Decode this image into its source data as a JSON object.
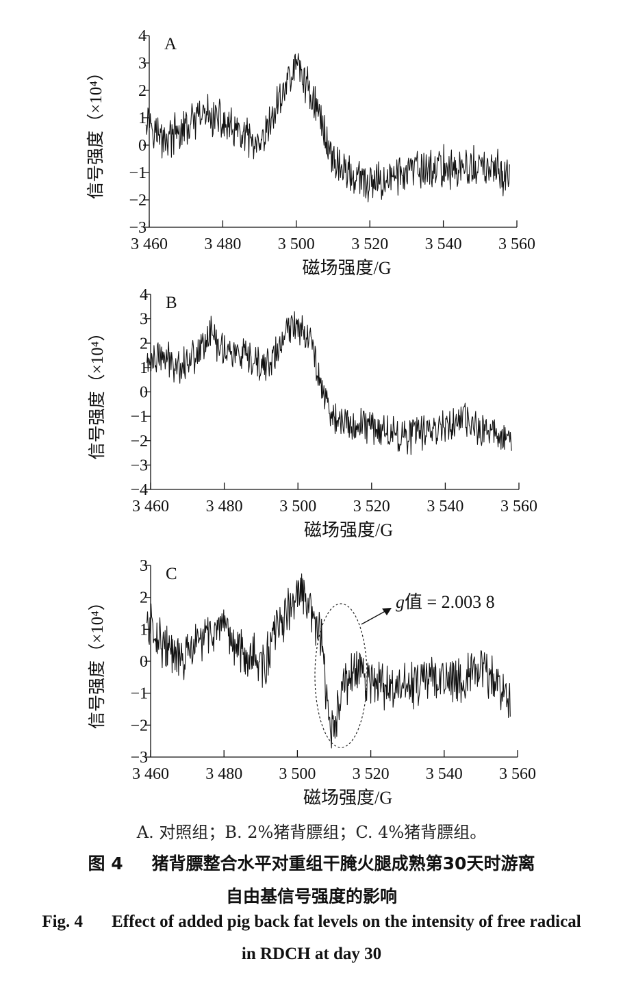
{
  "chart_data": [
    {
      "type": "line",
      "panel_label": "A",
      "xlabel": "磁场强度/G",
      "ylabel": "信号强度（×10⁴）",
      "xlim": [
        3460,
        3560
      ],
      "ylim": [
        -3,
        4
      ],
      "xticks": [
        3460,
        3480,
        3500,
        3520,
        3540,
        3560
      ],
      "xtick_labels": [
        "3 460",
        "3 480",
        "3 500",
        "3 520",
        "3 540",
        "3 560"
      ],
      "yticks": [
        -3,
        -2,
        -1,
        0,
        1,
        2,
        3,
        4
      ],
      "ytick_labels": [
        "−3",
        "−2",
        "−1",
        "0",
        "1",
        "2",
        "3",
        "4"
      ],
      "x": [
        3459,
        3461,
        3463,
        3466,
        3469,
        3472,
        3475,
        3478,
        3481,
        3484,
        3487,
        3490,
        3493,
        3495,
        3497,
        3499,
        3500,
        3501,
        3502,
        3504,
        3506,
        3508,
        3510,
        3512,
        3514,
        3517,
        3520,
        3525,
        3530,
        3535,
        3540,
        3545,
        3550,
        3555,
        3558
      ],
      "values": [
        1.2,
        0.8,
        0.2,
        0.3,
        0.5,
        0.8,
        1.1,
        1.0,
        0.7,
        0.4,
        0.2,
        -0.3,
        0.8,
        1.5,
        2.2,
        2.6,
        3.0,
        2.8,
        2.4,
        1.9,
        1.2,
        0.3,
        -0.5,
        -0.8,
        -1.0,
        -1.3,
        -1.5,
        -1.2,
        -1.0,
        -0.9,
        -0.8,
        -0.9,
        -0.8,
        -1.0,
        -1.1
      ]
    },
    {
      "type": "line",
      "panel_label": "B",
      "xlabel": "磁场强度/G",
      "ylabel": "信号强度（×10⁴）",
      "xlim": [
        3460,
        3560
      ],
      "ylim": [
        -4,
        4
      ],
      "xticks": [
        3460,
        3480,
        3500,
        3520,
        3540,
        3560
      ],
      "xtick_labels": [
        "3 460",
        "3 480",
        "3 500",
        "3 520",
        "3 540",
        "3 560"
      ],
      "yticks": [
        -4,
        -3,
        -2,
        -1,
        0,
        1,
        2,
        3,
        4
      ],
      "ytick_labels": [
        "−4",
        "−3",
        "−2",
        "−1",
        "0",
        "1",
        "2",
        "3",
        "4"
      ],
      "x": [
        3459,
        3462,
        3465,
        3468,
        3471,
        3474,
        3476,
        3478,
        3481,
        3484,
        3487,
        3490,
        3493,
        3495,
        3497,
        3499,
        3501,
        3503,
        3505,
        3507,
        3509,
        3511,
        3514,
        3518,
        3522,
        3526,
        3530,
        3535,
        3540,
        3545,
        3550,
        3555,
        3558
      ],
      "values": [
        1.2,
        1.4,
        1.3,
        1.1,
        1.4,
        1.9,
        2.5,
        2.0,
        1.7,
        1.5,
        1.2,
        1.0,
        1.3,
        1.8,
        2.4,
        2.8,
        2.7,
        2.3,
        1.2,
        0.0,
        -0.9,
        -1.2,
        -1.4,
        -1.3,
        -1.5,
        -1.7,
        -1.8,
        -1.6,
        -1.3,
        -1.2,
        -1.6,
        -1.7,
        -1.9
      ]
    },
    {
      "type": "line",
      "panel_label": "C",
      "xlabel": "磁场强度/G",
      "ylabel": "信号强度（×10⁴）",
      "xlim": [
        3460,
        3560
      ],
      "ylim": [
        -3,
        3
      ],
      "xticks": [
        3460,
        3480,
        3500,
        3520,
        3540,
        3560
      ],
      "xtick_labels": [
        "3 460",
        "3 480",
        "3 500",
        "3 520",
        "3 540",
        "3 560"
      ],
      "yticks": [
        -3,
        -2,
        -1,
        0,
        1,
        2,
        3
      ],
      "ytick_labels": [
        "−3",
        "−2",
        "−1",
        "0",
        "1",
        "2",
        "3"
      ],
      "x": [
        3459,
        3462,
        3465,
        3468,
        3471,
        3474,
        3477,
        3480,
        3483,
        3486,
        3489,
        3491,
        3493,
        3495,
        3497,
        3499,
        3501,
        3503,
        3505,
        3506,
        3507,
        3508,
        3509,
        3511,
        3513,
        3516,
        3520,
        3525,
        3530,
        3535,
        3540,
        3545,
        3550,
        3555,
        3558
      ],
      "values": [
        1.2,
        0.8,
        0.3,
        0.0,
        0.3,
        0.7,
        1.0,
        0.8,
        0.5,
        0.3,
        0.1,
        -0.2,
        0.6,
        1.1,
        1.5,
        1.8,
        2.2,
        1.6,
        1.2,
        1.0,
        0.2,
        -1.4,
        -2.3,
        -1.6,
        -0.7,
        -0.3,
        -0.6,
        -0.9,
        -0.8,
        -0.6,
        -0.5,
        -0.5,
        -0.3,
        -0.7,
        -1.1
      ]
    }
  ],
  "annotation": {
    "prefix": "g",
    "text": "值 = 2.003 8"
  },
  "caption": {
    "legend": "A. 对照组；B. 2%猪背膘组；C. 4%猪背膘组。",
    "cn_label": "图 4",
    "cn_line1": "猪背膘整合水平对重组干腌火腿成熟第30天时游离",
    "cn_line2": "自由基信号强度的影响",
    "en_label": "Fig. 4",
    "en_line1": "Effect of added pig back fat levels on the intensity of free radical",
    "en_line2": "in RDCH at day 30"
  }
}
